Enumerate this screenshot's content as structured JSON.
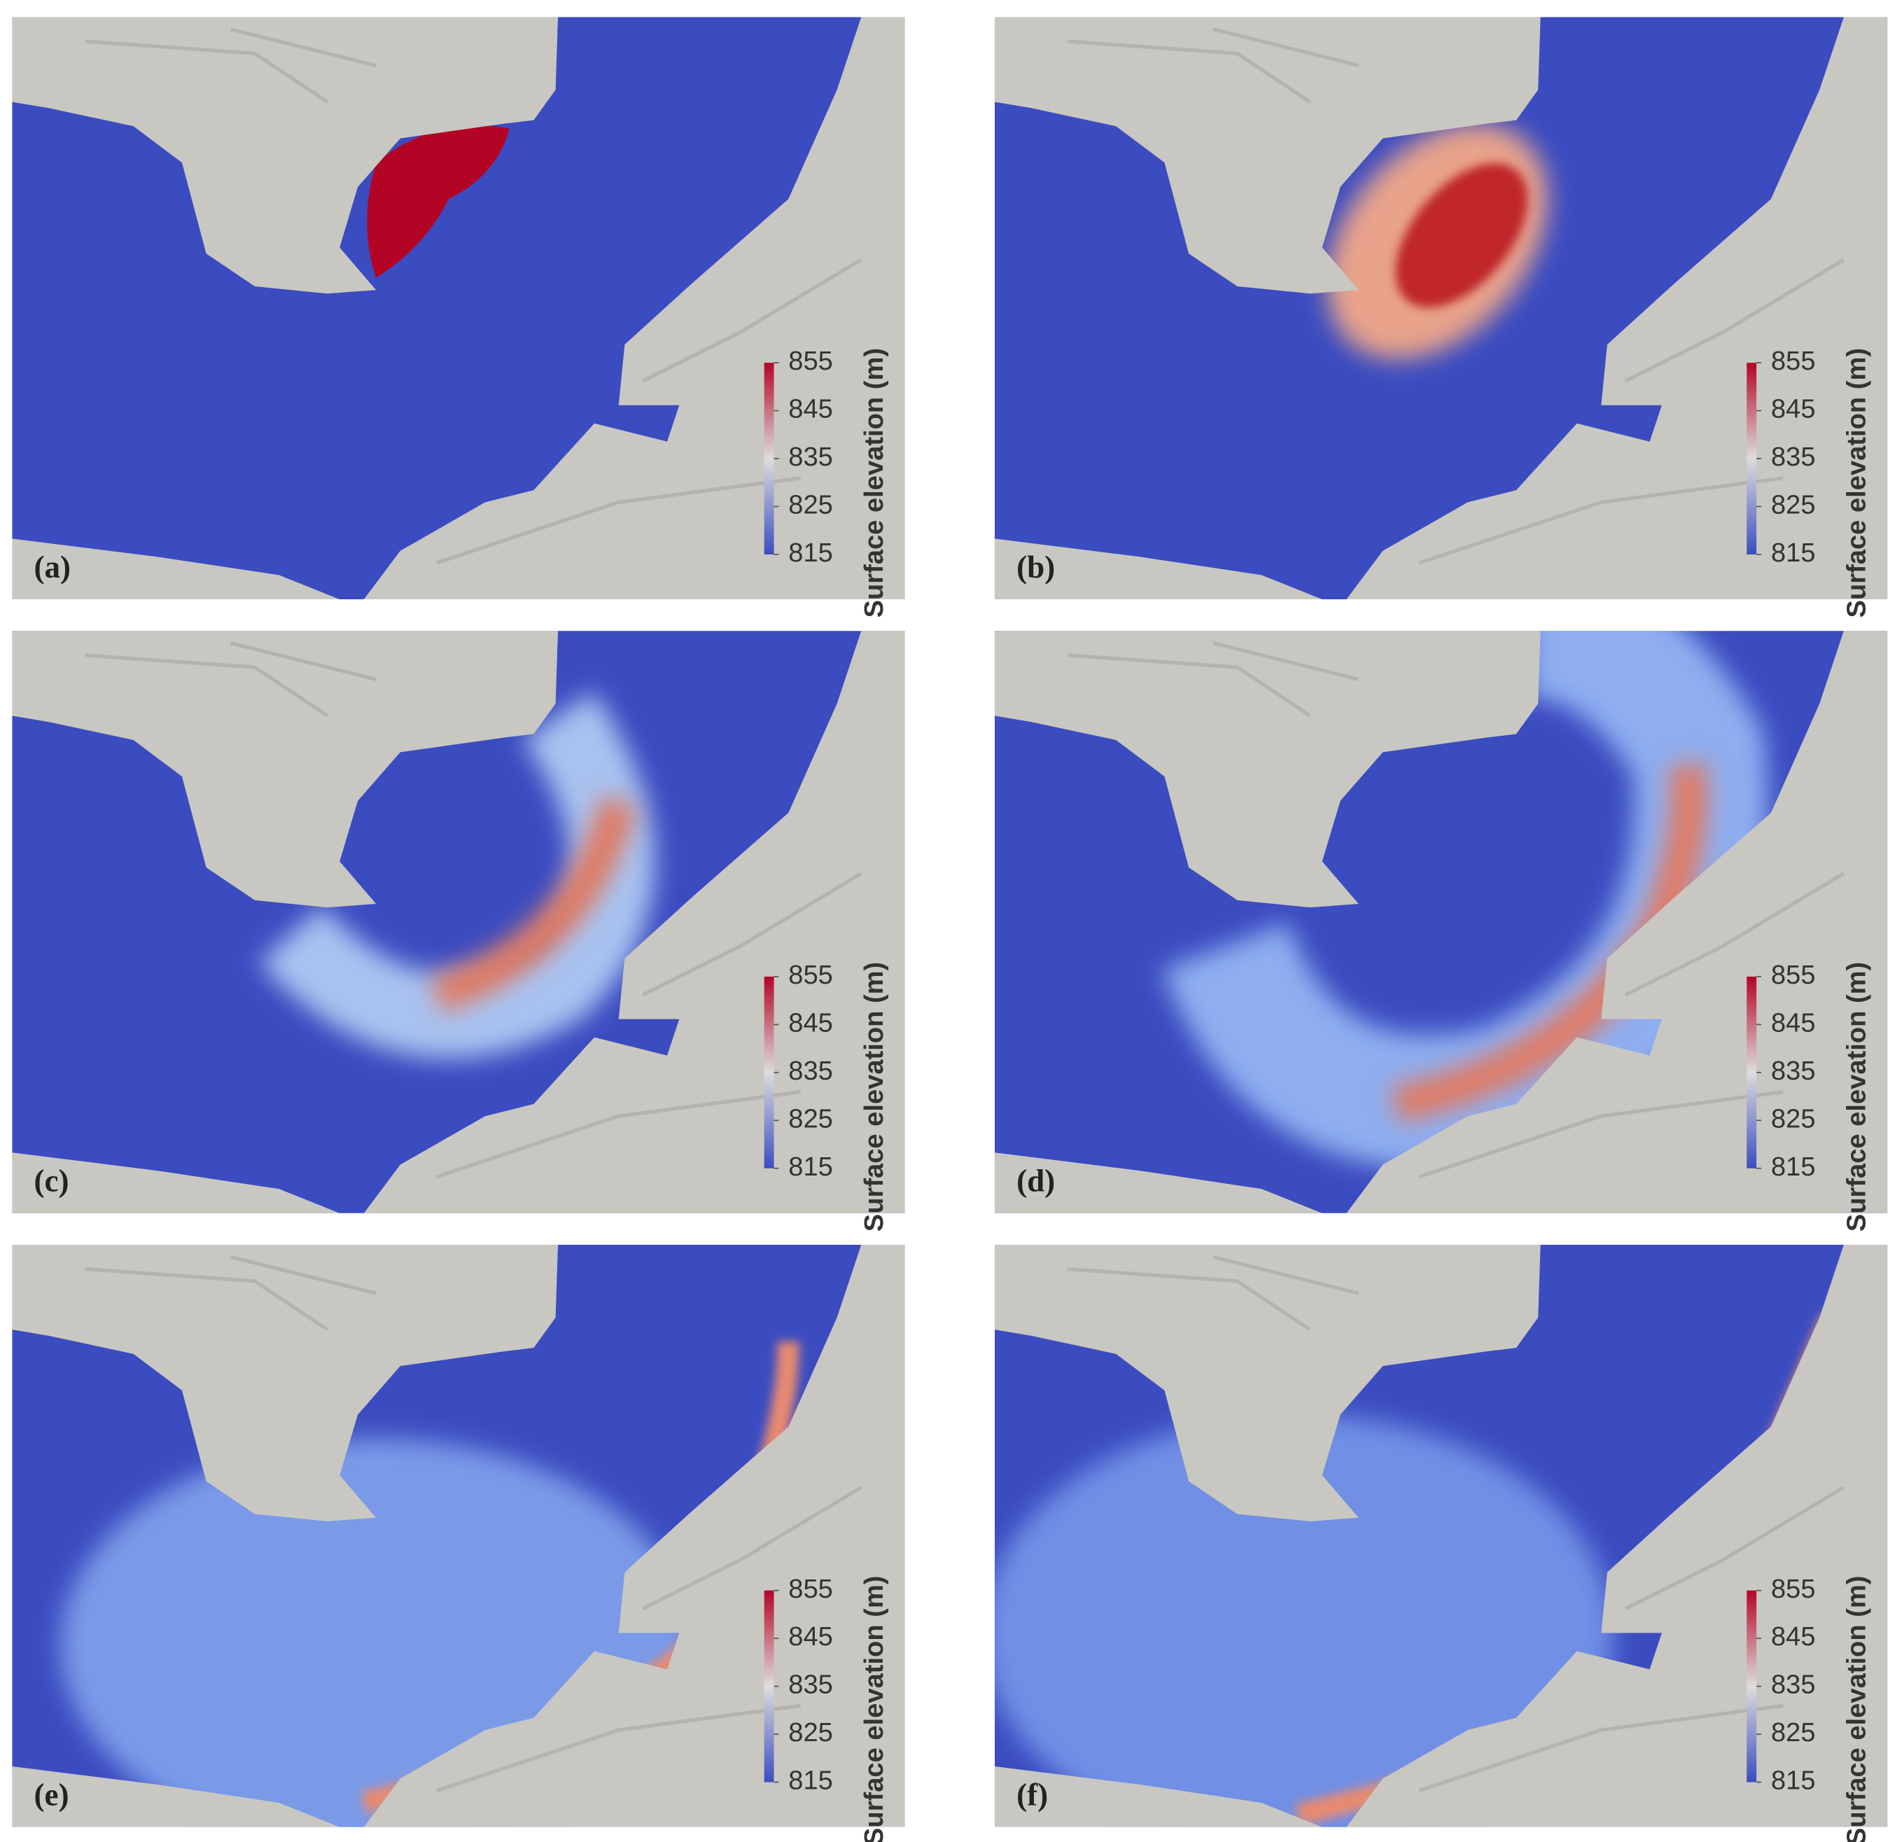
{
  "panels": [
    {
      "label": "(a)",
      "colorbar": {
        "title": "Surface elevation (m)",
        "range": [
          815,
          855
        ],
        "ticks": [
          815,
          825,
          835,
          845,
          855
        ],
        "colors": [
          "#3b4cc0",
          "#dddddd",
          "#b40426"
        ]
      }
    },
    {
      "label": "(b)",
      "colorbar": {
        "title": "Surface elevation (m)",
        "range": [
          815,
          855
        ],
        "ticks": [
          815,
          825,
          835,
          845,
          855
        ],
        "colors": [
          "#3b4cc0",
          "#dddddd",
          "#b40426"
        ]
      }
    },
    {
      "label": "(c)",
      "colorbar": {
        "title": "Surface elevation (m)",
        "range": [
          815,
          855
        ],
        "ticks": [
          815,
          825,
          835,
          845,
          855
        ],
        "colors": [
          "#3b4cc0",
          "#dddddd",
          "#b40426"
        ]
      }
    },
    {
      "label": "(d)",
      "colorbar": {
        "title": "Surface elevation (m)",
        "range": [
          815,
          855
        ],
        "ticks": [
          815,
          825,
          835,
          845,
          855
        ],
        "colors": [
          "#3b4cc0",
          "#dddddd",
          "#b40426"
        ]
      }
    },
    {
      "label": "(e)",
      "colorbar": {
        "title": "Surface elevation (m)",
        "range": [
          815,
          855
        ],
        "ticks": [
          815,
          825,
          835,
          845,
          855
        ],
        "colors": [
          "#3b4cc0",
          "#dddddd",
          "#b40426"
        ]
      }
    },
    {
      "label": "(f)",
      "colorbar": {
        "title": "Surface elevation (m)",
        "range": [
          815,
          855
        ],
        "ticks": [
          815,
          825,
          835,
          845,
          855
        ],
        "colors": [
          "#3b4cc0",
          "#dddddd",
          "#b40426"
        ]
      }
    }
  ]
}
